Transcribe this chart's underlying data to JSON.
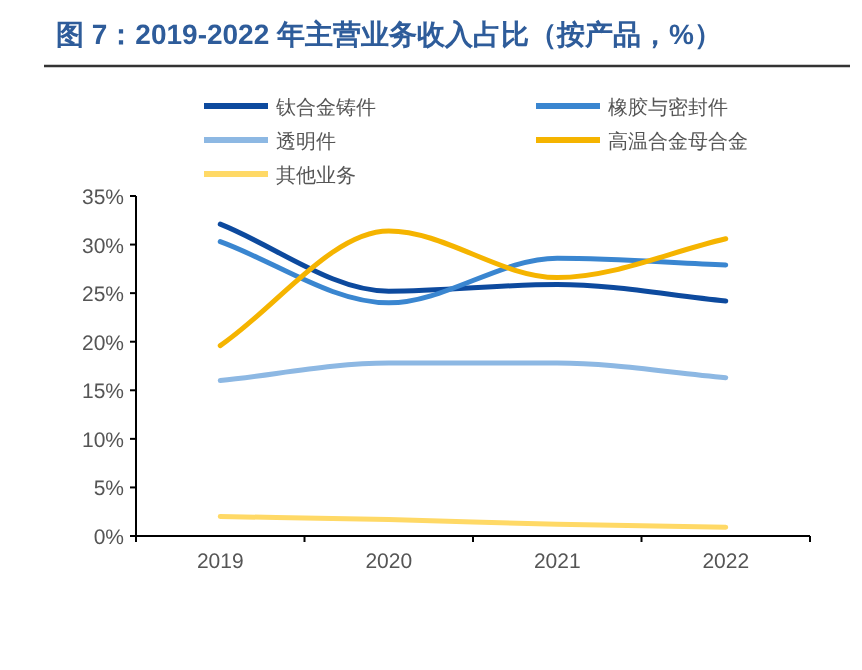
{
  "chart_data": {
    "type": "line",
    "title": "图 7：2019-2022 年主营业务收入占比（按产品，%）",
    "categories": [
      "2019",
      "2020",
      "2021",
      "2022"
    ],
    "series": [
      {
        "name": "钛合金铸件",
        "color": "#0d4a9e",
        "values": [
          32.1,
          25.2,
          25.9,
          24.2
        ]
      },
      {
        "name": "橡胶与密封件",
        "color": "#3a86d0",
        "values": [
          30.3,
          24.0,
          28.6,
          27.9
        ]
      },
      {
        "name": "透明件",
        "color": "#8db8e3",
        "values": [
          16.0,
          17.8,
          17.8,
          16.3
        ]
      },
      {
        "name": "高温合金母合金",
        "color": "#f5b400",
        "values": [
          19.6,
          31.4,
          26.6,
          30.6
        ]
      },
      {
        "name": "其他业务",
        "color": "#ffd966",
        "values": [
          2.0,
          1.7,
          1.2,
          0.9
        ]
      }
    ],
    "ylim": [
      0,
      35
    ],
    "yticks": [
      {
        "value": 0,
        "label": "0%"
      },
      {
        "value": 5,
        "label": "5%"
      },
      {
        "value": 10,
        "label": "10%"
      },
      {
        "value": 15,
        "label": "15%"
      },
      {
        "value": 20,
        "label": "20%"
      },
      {
        "value": 25,
        "label": "25%"
      },
      {
        "value": 30,
        "label": "30%"
      },
      {
        "value": 35,
        "label": "35%"
      }
    ],
    "legend": "top",
    "grid": false,
    "marker": "none",
    "line_style": "solid"
  }
}
